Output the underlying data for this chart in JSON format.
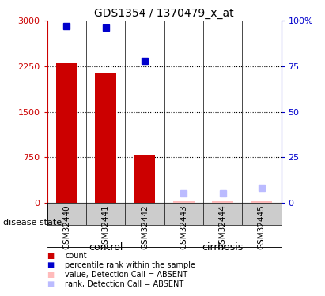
{
  "title": "GDS1354 / 1370479_x_at",
  "samples": [
    "GSM32440",
    "GSM32441",
    "GSM32442",
    "GSM32443",
    "GSM32444",
    "GSM32445"
  ],
  "groups": [
    {
      "name": "control",
      "indices": [
        0,
        1,
        2
      ],
      "color": "#90ee90"
    },
    {
      "name": "cirrhosis",
      "indices": [
        3,
        4,
        5
      ],
      "color": "#00dd00"
    }
  ],
  "count_values": [
    2300,
    2150,
    780,
    30,
    25,
    20
  ],
  "count_absent": [
    false,
    false,
    false,
    true,
    true,
    true
  ],
  "rank_values": [
    97,
    96,
    78,
    5,
    5,
    8
  ],
  "rank_absent": [
    false,
    false,
    false,
    true,
    true,
    true
  ],
  "ylim_left": [
    0,
    3000
  ],
  "ylim_right": [
    0,
    100
  ],
  "yticks_left": [
    0,
    750,
    1500,
    2250,
    3000
  ],
  "yticks_right": [
    0,
    25,
    50,
    75,
    100
  ],
  "yticklabels_left": [
    "0",
    "750",
    "1500",
    "2250",
    "3000"
  ],
  "yticklabels_right": [
    "0",
    "25",
    "50",
    "75",
    "100%"
  ],
  "bar_color": "#cc0000",
  "bar_absent_color": "#ffbbbb",
  "rank_color": "#0000cc",
  "rank_absent_color": "#bbbbff",
  "dotted_grid_values": [
    750,
    1500,
    2250
  ],
  "left_axis_color": "#cc0000",
  "right_axis_color": "#0000cc",
  "bg_color_plot": "#ffffff",
  "bg_color_table": "#cccccc",
  "bar_width": 0.55,
  "legend_items": [
    {
      "color": "#cc0000",
      "label": "count"
    },
    {
      "color": "#0000cc",
      "label": "percentile rank within the sample"
    },
    {
      "color": "#ffbbbb",
      "label": "value, Detection Call = ABSENT"
    },
    {
      "color": "#bbbbff",
      "label": "rank, Detection Call = ABSENT"
    }
  ]
}
